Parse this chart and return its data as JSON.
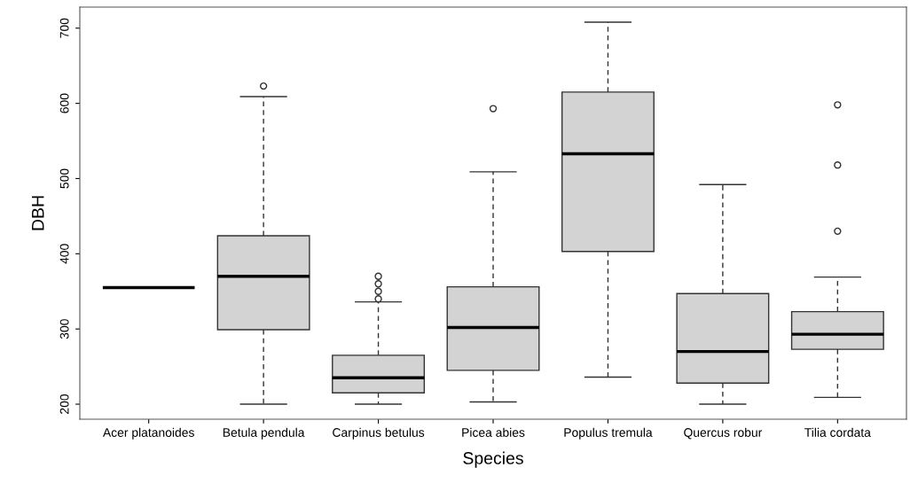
{
  "chart_data": {
    "type": "box",
    "xlabel": "Species",
    "ylabel": "DBH",
    "categories": [
      "Acer platanoides",
      "Betula pendula",
      "Carpinus betulus",
      "Picea abies",
      "Populus tremula",
      "Quercus robur",
      "Tilia cordata"
    ],
    "color": "#d3d3d3",
    "boxes": [
      {
        "low": 355,
        "q1": 355,
        "median": 355,
        "q3": 355,
        "high": 355
      },
      {
        "low": 200,
        "q1": 299,
        "median": 370,
        "q3": 424,
        "high": 609,
        "outliers": [
          623
        ]
      },
      {
        "low": 200,
        "q1": 215,
        "median": 235,
        "q3": 265,
        "high": 336,
        "outliers": [
          340,
          350,
          360,
          370
        ]
      },
      {
        "low": 203,
        "q1": 245,
        "median": 302,
        "q3": 356,
        "high": 509,
        "outliers": [
          593
        ]
      },
      {
        "low": 236,
        "q1": 403,
        "median": 533,
        "q3": 615,
        "high": 708
      },
      {
        "low": 200,
        "q1": 228,
        "median": 270,
        "q3": 347,
        "high": 492
      },
      {
        "low": 209,
        "q1": 273,
        "median": 293,
        "q3": 323,
        "high": 369,
        "outliers": [
          430,
          518,
          598
        ]
      }
    ],
    "ylim": [
      180,
      728
    ],
    "yticks": [
      200,
      300,
      400,
      500,
      600,
      700
    ],
    "grid": false
  }
}
